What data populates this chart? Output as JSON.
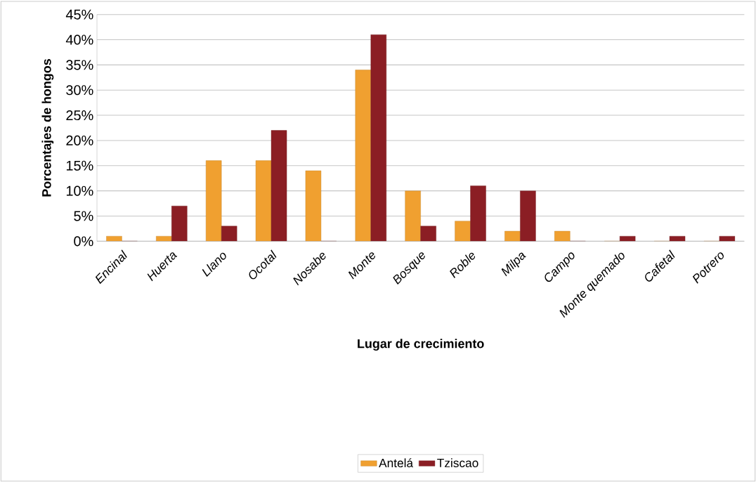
{
  "chart_data": {
    "type": "bar",
    "xlabel": "Lugar de crecimiento",
    "ylabel": "Porcentajes de hongos",
    "categories": [
      "Encinal",
      "Huerta",
      "Llano",
      "Ocotal",
      "Nosabe",
      "Monte",
      "Bosque",
      "Roble",
      "Milpa",
      "Campo",
      "Monte quemado",
      "Cafetal",
      "Potrero"
    ],
    "series": [
      {
        "name": "Antelá",
        "color": "#f0a030",
        "values": [
          1,
          1,
          16,
          16,
          14,
          34,
          10,
          4,
          2,
          2,
          0,
          0,
          0
        ]
      },
      {
        "name": "Tziscao",
        "color": "#8b1e24",
        "values": [
          0,
          7,
          3,
          22,
          0,
          41,
          3,
          11,
          10,
          0,
          1,
          1,
          1
        ]
      }
    ],
    "ylim": [
      0,
      45
    ],
    "yticks": [
      {
        "value": 0,
        "label": "0%"
      },
      {
        "value": 5,
        "label": "5%"
      },
      {
        "value": 10,
        "label": "10%"
      },
      {
        "value": 15,
        "label": "15%"
      },
      {
        "value": 20,
        "label": "20%"
      },
      {
        "value": 25,
        "label": "25%"
      },
      {
        "value": 30,
        "label": "30%"
      },
      {
        "value": 35,
        "label": "35%"
      },
      {
        "value": 40,
        "label": "40%"
      },
      {
        "value": 45,
        "label": "45%"
      }
    ],
    "grid": "y",
    "legend": "bottom"
  }
}
